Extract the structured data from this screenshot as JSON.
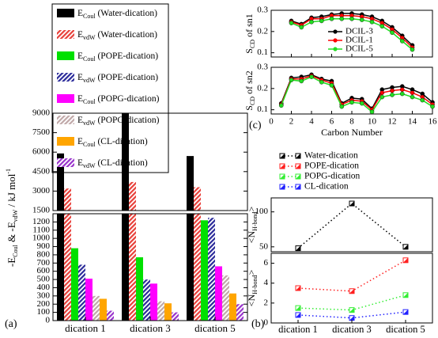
{
  "chart_data": [
    {
      "type": "bar",
      "panel_label": "(a)",
      "ylabel": [
        {
          "t": "-E"
        },
        {
          "t": "Coul",
          "shift": "sub"
        },
        {
          "t": " & -E"
        },
        {
          "t": "vdW",
          "shift": "sub"
        },
        {
          "t": " / kJ mol"
        },
        {
          "t": "-1",
          "shift": "super"
        }
      ],
      "categories": [
        "dication 1",
        "dication 3",
        "dication 5"
      ],
      "upper": {
        "ylim": [
          1500,
          9000
        ],
        "yticks": [
          1500,
          3000,
          4500,
          6000,
          7500,
          9000
        ]
      },
      "lower": {
        "ylim": [
          0,
          1300
        ],
        "yticks": [
          0,
          100,
          200,
          300,
          400,
          500,
          600,
          700,
          800,
          900,
          1000,
          1100,
          1200
        ]
      },
      "series": [
        {
          "name": [
            {
              "t": "E"
            },
            {
              "t": "Coul",
              "shift": "sub"
            },
            {
              "t": " (Water-dication)"
            }
          ],
          "color": "#000000",
          "pattern": "solid",
          "values": [
            5900,
            9000,
            5700
          ]
        },
        {
          "name": [
            {
              "t": "E"
            },
            {
              "t": "vdW",
              "shift": "sub"
            },
            {
              "t": " (Water-dication)"
            }
          ],
          "color": "#e8403a",
          "pattern": "hatch",
          "values": [
            3200,
            3700,
            3300
          ]
        },
        {
          "name": [
            {
              "t": "E"
            },
            {
              "t": "Coul",
              "shift": "sub"
            },
            {
              "t": " (POPE-dication)"
            }
          ],
          "color": "#00e000",
          "pattern": "solid",
          "values": [
            880,
            770,
            1220
          ]
        },
        {
          "name": [
            {
              "t": "E"
            },
            {
              "t": "vdW",
              "shift": "sub"
            },
            {
              "t": " (POPE-dication)"
            }
          ],
          "color": "#2a2a9a",
          "pattern": "hatch",
          "values": [
            680,
            500,
            1250
          ]
        },
        {
          "name": [
            {
              "t": "E"
            },
            {
              "t": "Coul",
              "shift": "sub"
            },
            {
              "t": " (POPG-dication)"
            }
          ],
          "color": "#ff00ff",
          "pattern": "solid",
          "values": [
            510,
            450,
            660
          ]
        },
        {
          "name": [
            {
              "t": "E"
            },
            {
              "t": "vdW",
              "shift": "sub"
            },
            {
              "t": " (POPG-dication)"
            }
          ],
          "color": "#c0a8a8",
          "pattern": "hatch",
          "values": [
            300,
            235,
            550
          ]
        },
        {
          "name": [
            {
              "t": "E"
            },
            {
              "t": "Coul",
              "shift": "sub"
            },
            {
              "t": " (CL-dication)"
            }
          ],
          "color": "#ffa500",
          "pattern": "solid",
          "values": [
            265,
            210,
            330
          ]
        },
        {
          "name": [
            {
              "t": "E"
            },
            {
              "t": "vdW",
              "shift": "sub"
            },
            {
              "t": " (CL-dication)"
            }
          ],
          "color": "#9933cc",
          "pattern": "hatch",
          "values": [
            120,
            100,
            200
          ]
        }
      ]
    },
    {
      "type": "line",
      "ylabel": [
        {
          "t": "S"
        },
        {
          "t": "CD",
          "shift": "sub"
        },
        {
          "t": " of sn1"
        }
      ],
      "xlim": [
        0,
        16
      ],
      "xticks": [
        0,
        2,
        4,
        6,
        8,
        10,
        12,
        14,
        16
      ],
      "ylim": [
        0.08,
        0.3
      ],
      "yticks": [
        0.1,
        0.2,
        0.3
      ],
      "legend": "center",
      "x": [
        2,
        3,
        4,
        5,
        6,
        7,
        8,
        9,
        10,
        11,
        12,
        13,
        14
      ],
      "series": [
        {
          "name": "DCIL-3",
          "color": "#000000",
          "values": [
            0.25,
            0.235,
            0.265,
            0.27,
            0.28,
            0.285,
            0.285,
            0.28,
            0.27,
            0.25,
            0.22,
            0.18,
            0.135
          ]
        },
        {
          "name": "DCIL-1",
          "color": "#ff0000",
          "values": [
            0.245,
            0.23,
            0.26,
            0.26,
            0.275,
            0.275,
            0.275,
            0.27,
            0.26,
            0.24,
            0.21,
            0.17,
            0.125
          ]
        },
        {
          "name": "DCIL-5",
          "color": "#22dd22",
          "values": [
            0.24,
            0.22,
            0.245,
            0.25,
            0.26,
            0.26,
            0.26,
            0.255,
            0.245,
            0.225,
            0.195,
            0.155,
            0.115
          ]
        }
      ]
    },
    {
      "type": "line",
      "panel_label": "(c)",
      "ylabel": [
        {
          "t": "S"
        },
        {
          "t": "CD",
          "shift": "sub"
        },
        {
          "t": " of sn2"
        }
      ],
      "xlabel": "Carbon Number",
      "xlim": [
        0,
        16
      ],
      "xticks": [
        0,
        2,
        4,
        6,
        8,
        10,
        12,
        14,
        16
      ],
      "ylim": [
        0.08,
        0.3
      ],
      "yticks": [
        0.1,
        0.2,
        0.3
      ],
      "x": [
        1,
        2,
        3,
        4,
        5,
        6,
        7,
        8,
        9,
        10,
        11,
        12,
        13,
        14,
        15,
        16
      ],
      "series": [
        {
          "name": "DCIL-3",
          "color": "#000000",
          "values": [
            0.13,
            0.25,
            0.255,
            0.265,
            0.245,
            0.235,
            0.13,
            0.155,
            0.15,
            0.105,
            0.195,
            0.205,
            0.21,
            0.195,
            0.175,
            0.135
          ]
        },
        {
          "name": "DCIL-1",
          "color": "#ff0000",
          "values": [
            0.125,
            0.245,
            0.245,
            0.26,
            0.24,
            0.225,
            0.125,
            0.145,
            0.14,
            0.1,
            0.18,
            0.19,
            0.195,
            0.18,
            0.16,
            0.125
          ]
        },
        {
          "name": "DCIL-5",
          "color": "#22dd22",
          "values": [
            0.12,
            0.24,
            0.235,
            0.255,
            0.23,
            0.215,
            0.115,
            0.135,
            0.13,
            0.09,
            0.16,
            0.17,
            0.175,
            0.16,
            0.145,
            0.115
          ]
        }
      ]
    },
    {
      "type": "dotline",
      "panel_label": "(b)",
      "ylabel": [
        {
          "t": "<N"
        },
        {
          "t": "H-bond",
          "shift": "sub"
        },
        {
          "t": ">"
        }
      ],
      "categories": [
        "dication 1",
        "dication 3",
        "dication 5"
      ],
      "upper": {
        "ylim": [
          43,
          120
        ],
        "yticks": [
          50,
          100
        ],
        "series": [
          {
            "name": "Water-dication",
            "color": "#000000",
            "values": [
              48,
              112,
              50
            ]
          }
        ]
      },
      "lower": {
        "ylim": [
          0,
          7
        ],
        "yticks": [
          0,
          2,
          4,
          6
        ],
        "series": [
          {
            "name": "POPE-dication",
            "color": "#ff2020",
            "values": [
              3.5,
              3.2,
              6.3
            ]
          },
          {
            "name": "POPG-dication",
            "color": "#33ee33",
            "values": [
              1.5,
              1.3,
              2.8
            ]
          },
          {
            "name": "CL-dication",
            "color": "#2020ff",
            "values": [
              0.8,
              0.5,
              1.1
            ]
          }
        ]
      }
    }
  ]
}
